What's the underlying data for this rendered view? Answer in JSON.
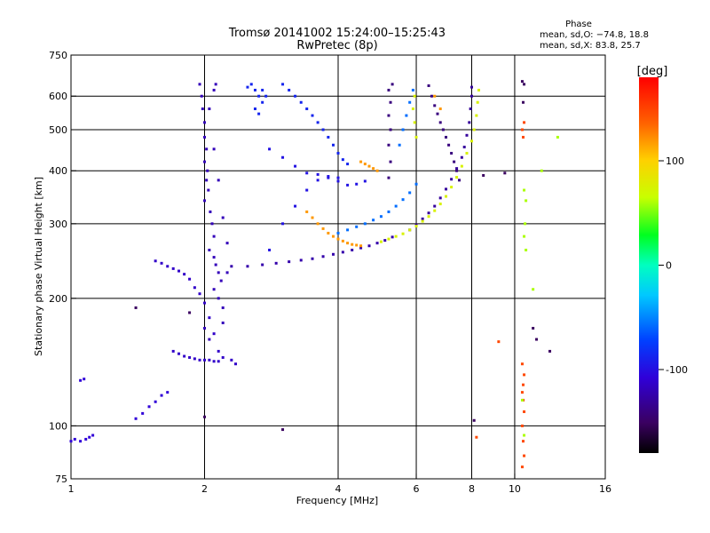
{
  "chart_data": {
    "type": "scatter",
    "title": "Tromsø 20141002 15:24:00–15:25:43",
    "subtitle": "RwPretec (8p)",
    "xlabel": "Frequency [MHz]",
    "ylabel": "Stationary phase Virtual Height [km]",
    "x_scale": "log",
    "y_scale": "log",
    "xlim": [
      1,
      16
    ],
    "ylim": [
      75,
      750
    ],
    "x_ticks": [
      1,
      2,
      4,
      6,
      8,
      10,
      16
    ],
    "y_ticks": [
      75,
      100,
      200,
      300,
      400,
      500,
      600,
      750
    ],
    "x_gridlines": [
      2,
      4,
      6,
      8,
      10
    ],
    "y_gridlines": [
      100,
      200,
      300,
      400,
      500,
      600
    ],
    "stats": {
      "heading": "Phase",
      "line_o": "mean, sd,O: −74.8, 18.8",
      "line_x": "mean, sd,X:  83.8, 25.7"
    },
    "colorbar": {
      "label": "[deg]",
      "range": [
        -180,
        180
      ],
      "ticks": [
        100,
        0,
        -100
      ],
      "colormap": "rainbow"
    },
    "series": [
      {
        "phase": -110,
        "points": [
          [
            1.0,
            92
          ],
          [
            1.02,
            93
          ],
          [
            1.05,
            92
          ],
          [
            1.08,
            93
          ],
          [
            1.1,
            94
          ],
          [
            1.12,
            95
          ],
          [
            1.05,
            128
          ],
          [
            1.07,
            129
          ],
          [
            1.4,
            104
          ],
          [
            1.45,
            107
          ],
          [
            1.5,
            111
          ],
          [
            1.55,
            114
          ],
          [
            1.6,
            118
          ],
          [
            1.65,
            120
          ]
        ]
      },
      {
        "phase": -115,
        "points": [
          [
            1.55,
            245
          ],
          [
            1.6,
            242
          ],
          [
            1.65,
            238
          ],
          [
            1.7,
            235
          ],
          [
            1.75,
            232
          ],
          [
            1.8,
            228
          ],
          [
            1.85,
            222
          ],
          [
            1.9,
            212
          ],
          [
            1.95,
            205
          ],
          [
            2.0,
            195
          ],
          [
            2.05,
            180
          ],
          [
            2.1,
            165
          ],
          [
            2.15,
            150
          ],
          [
            2.2,
            145
          ],
          [
            2.3,
            143
          ],
          [
            2.35,
            140
          ],
          [
            1.7,
            150
          ],
          [
            1.75,
            148
          ],
          [
            1.8,
            146
          ],
          [
            1.85,
            145
          ],
          [
            1.9,
            144
          ],
          [
            1.95,
            143
          ],
          [
            2.0,
            143
          ],
          [
            2.05,
            143
          ],
          [
            2.1,
            142
          ],
          [
            2.15,
            142
          ]
        ]
      },
      {
        "phase": -120,
        "points": [
          [
            1.95,
            640
          ],
          [
            1.97,
            600
          ],
          [
            1.98,
            560
          ],
          [
            2.0,
            520
          ],
          [
            2.0,
            480
          ],
          [
            2.02,
            450
          ],
          [
            2.0,
            420
          ],
          [
            2.03,
            400
          ],
          [
            2.02,
            380
          ],
          [
            2.04,
            360
          ],
          [
            2.0,
            340
          ],
          [
            2.06,
            320
          ],
          [
            2.08,
            300
          ],
          [
            2.1,
            280
          ],
          [
            2.05,
            260
          ],
          [
            2.1,
            250
          ],
          [
            2.12,
            240
          ],
          [
            2.15,
            230
          ],
          [
            2.18,
            220
          ],
          [
            2.1,
            210
          ],
          [
            2.15,
            200
          ],
          [
            2.2,
            190
          ],
          [
            2.0,
            170
          ],
          [
            2.05,
            160
          ],
          [
            2.2,
            175
          ],
          [
            2.25,
            230
          ],
          [
            2.25,
            270
          ],
          [
            2.2,
            310
          ],
          [
            2.15,
            380
          ],
          [
            2.1,
            450
          ],
          [
            2.05,
            560
          ],
          [
            2.1,
            620
          ],
          [
            2.12,
            640
          ]
        ]
      },
      {
        "phase": -125,
        "points": [
          [
            2.3,
            238
          ],
          [
            2.5,
            238
          ],
          [
            2.7,
            240
          ],
          [
            2.9,
            242
          ],
          [
            3.1,
            244
          ],
          [
            3.3,
            246
          ],
          [
            3.5,
            248
          ],
          [
            3.7,
            251
          ],
          [
            3.9,
            254
          ],
          [
            4.1,
            257
          ],
          [
            4.3,
            260
          ],
          [
            4.5,
            263
          ],
          [
            4.7,
            266
          ],
          [
            4.9,
            270
          ],
          [
            5.1,
            274
          ],
          [
            5.3,
            279
          ]
        ]
      },
      {
        "phase": -130,
        "points": [
          [
            5.8,
            290
          ],
          [
            6.0,
            298
          ],
          [
            6.2,
            308
          ],
          [
            6.4,
            318
          ],
          [
            6.6,
            330
          ],
          [
            6.8,
            345
          ],
          [
            7.0,
            362
          ],
          [
            7.2,
            382
          ],
          [
            7.4,
            405
          ],
          [
            7.6,
            430
          ],
          [
            7.7,
            455
          ],
          [
            7.8,
            485
          ],
          [
            7.9,
            520
          ],
          [
            7.95,
            560
          ],
          [
            8.0,
            600
          ],
          [
            8.0,
            630
          ]
        ]
      },
      {
        "phase": -100,
        "points": [
          [
            2.8,
            260
          ],
          [
            3.0,
            300
          ],
          [
            3.2,
            330
          ],
          [
            3.4,
            360
          ],
          [
            3.6,
            380
          ],
          [
            3.8,
            385
          ],
          [
            4.0,
            378
          ],
          [
            4.2,
            370
          ],
          [
            4.4,
            372
          ],
          [
            4.6,
            378
          ],
          [
            2.8,
            450
          ],
          [
            3.0,
            430
          ],
          [
            3.2,
            410
          ],
          [
            3.4,
            395
          ],
          [
            3.6,
            392
          ],
          [
            3.8,
            388
          ],
          [
            4.0,
            385
          ]
        ]
      },
      {
        "phase": -90,
        "points": [
          [
            2.5,
            630
          ],
          [
            2.55,
            640
          ],
          [
            2.6,
            620
          ],
          [
            2.65,
            600
          ],
          [
            2.7,
            580
          ],
          [
            2.6,
            560
          ],
          [
            2.65,
            545
          ],
          [
            2.7,
            620
          ],
          [
            2.75,
            600
          ],
          [
            3.0,
            640
          ],
          [
            3.1,
            620
          ],
          [
            3.2,
            600
          ],
          [
            3.3,
            580
          ],
          [
            3.4,
            560
          ],
          [
            3.5,
            540
          ],
          [
            3.6,
            520
          ],
          [
            3.7,
            500
          ],
          [
            3.8,
            480
          ],
          [
            3.9,
            460
          ],
          [
            4.0,
            440
          ],
          [
            4.1,
            425
          ],
          [
            4.2,
            415
          ]
        ]
      },
      {
        "phase": -140,
        "points": [
          [
            5.2,
            385
          ],
          [
            5.25,
            420
          ],
          [
            5.2,
            460
          ],
          [
            5.25,
            500
          ],
          [
            5.2,
            540
          ],
          [
            5.25,
            580
          ],
          [
            5.2,
            620
          ],
          [
            5.3,
            640
          ],
          [
            6.4,
            635
          ],
          [
            6.5,
            600
          ],
          [
            6.6,
            570
          ],
          [
            6.7,
            545
          ],
          [
            6.8,
            520
          ],
          [
            6.9,
            500
          ],
          [
            7.0,
            480
          ],
          [
            7.1,
            460
          ],
          [
            7.2,
            440
          ],
          [
            7.3,
            420
          ],
          [
            7.4,
            400
          ],
          [
            7.5,
            380
          ]
        ]
      },
      {
        "phase": -60,
        "points": [
          [
            4.0,
            285
          ],
          [
            4.2,
            290
          ],
          [
            4.4,
            295
          ],
          [
            4.6,
            300
          ],
          [
            4.8,
            306
          ],
          [
            5.0,
            312
          ],
          [
            5.2,
            320
          ],
          [
            5.4,
            330
          ],
          [
            5.6,
            342
          ],
          [
            5.8,
            355
          ],
          [
            6.0,
            372
          ],
          [
            5.5,
            460
          ],
          [
            5.6,
            500
          ],
          [
            5.7,
            540
          ],
          [
            5.8,
            580
          ],
          [
            5.9,
            620
          ]
        ]
      },
      {
        "phase": 120,
        "points": [
          [
            3.4,
            320
          ],
          [
            3.5,
            310
          ],
          [
            3.6,
            300
          ],
          [
            3.7,
            292
          ],
          [
            3.8,
            285
          ],
          [
            3.9,
            280
          ],
          [
            4.0,
            276
          ],
          [
            4.1,
            273
          ],
          [
            4.2,
            270
          ],
          [
            4.3,
            268
          ],
          [
            4.4,
            267
          ],
          [
            4.5,
            266
          ],
          [
            4.5,
            420
          ],
          [
            4.6,
            415
          ],
          [
            4.7,
            410
          ],
          [
            4.8,
            405
          ],
          [
            4.9,
            400
          ],
          [
            6.6,
            600
          ],
          [
            6.8,
            560
          ]
        ]
      },
      {
        "phase": 75,
        "points": [
          [
            5.0,
            272
          ],
          [
            5.2,
            276
          ],
          [
            5.4,
            280
          ],
          [
            5.6,
            284
          ],
          [
            5.8,
            290
          ],
          [
            6.0,
            296
          ],
          [
            6.2,
            304
          ],
          [
            6.4,
            312
          ],
          [
            6.6,
            322
          ],
          [
            6.8,
            334
          ],
          [
            7.0,
            348
          ],
          [
            7.2,
            366
          ],
          [
            7.4,
            386
          ],
          [
            7.6,
            410
          ],
          [
            7.8,
            440
          ],
          [
            8.0,
            470
          ],
          [
            8.1,
            500
          ],
          [
            8.2,
            540
          ],
          [
            8.25,
            580
          ],
          [
            8.3,
            620
          ],
          [
            5.9,
            560
          ],
          [
            5.95,
            520
          ],
          [
            6.0,
            480
          ],
          [
            5.95,
            600
          ]
        ]
      },
      {
        "phase": 150,
        "points": [
          [
            10.4,
            120
          ],
          [
            10.45,
            125
          ],
          [
            10.5,
            132
          ],
          [
            10.4,
            140
          ],
          [
            10.45,
            115
          ],
          [
            10.5,
            108
          ],
          [
            10.4,
            100
          ],
          [
            10.45,
            92
          ],
          [
            10.5,
            85
          ],
          [
            10.4,
            80
          ],
          [
            10.45,
            480
          ],
          [
            10.4,
            500
          ],
          [
            10.5,
            520
          ],
          [
            9.2,
            158
          ],
          [
            8.2,
            94
          ]
        ]
      },
      {
        "phase": -150,
        "points": [
          [
            10.4,
            650
          ],
          [
            10.5,
            640
          ],
          [
            10.45,
            580
          ],
          [
            11.0,
            170
          ],
          [
            11.2,
            160
          ],
          [
            12.0,
            150
          ],
          [
            8.5,
            390
          ],
          [
            9.5,
            395
          ],
          [
            1.4,
            190
          ],
          [
            1.85,
            185
          ],
          [
            2.0,
            105
          ],
          [
            3.0,
            98
          ],
          [
            8.1,
            103
          ]
        ]
      },
      {
        "phase": 60,
        "points": [
          [
            10.5,
            360
          ],
          [
            10.6,
            340
          ],
          [
            10.55,
            300
          ],
          [
            10.5,
            280
          ],
          [
            10.6,
            260
          ],
          [
            11.0,
            210
          ],
          [
            12.5,
            480
          ],
          [
            11.5,
            400
          ],
          [
            10.4,
            115
          ],
          [
            10.5,
            95
          ]
        ]
      }
    ]
  }
}
